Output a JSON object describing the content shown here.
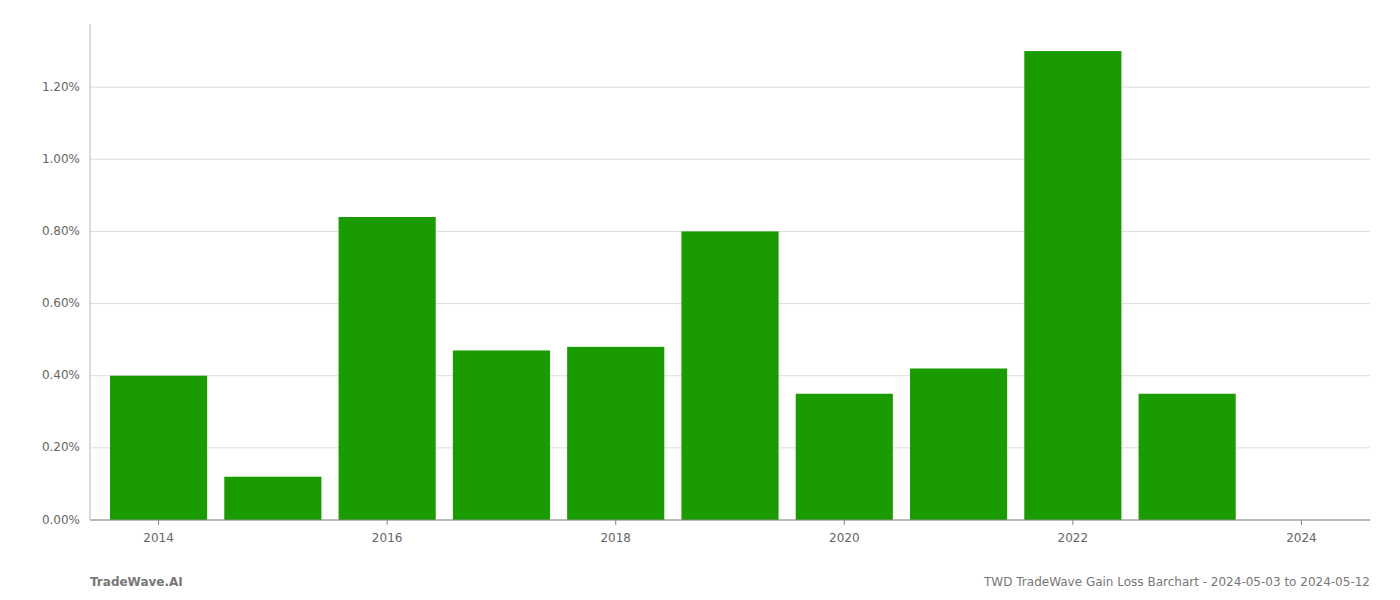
{
  "chart_data": {
    "type": "bar",
    "x": [
      2014,
      2015,
      2016,
      2017,
      2018,
      2019,
      2020,
      2021,
      2022,
      2023
    ],
    "values": [
      0.004,
      0.0012,
      0.0084,
      0.0047,
      0.0048,
      0.008,
      0.0035,
      0.0042,
      0.013,
      0.0035
    ],
    "color": "#1a9b00",
    "xlim": [
      2013.4,
      2024.6
    ],
    "xticks": [
      2014,
      2016,
      2018,
      2020,
      2022,
      2024
    ],
    "ylim": [
      0,
      0.01375
    ],
    "yticks": [
      {
        "value": 0.0,
        "label": "0.00%"
      },
      {
        "value": 0.002,
        "label": "0.20%"
      },
      {
        "value": 0.004,
        "label": "0.40%"
      },
      {
        "value": 0.006,
        "label": "0.60%"
      },
      {
        "value": 0.008,
        "label": "0.80%"
      },
      {
        "value": 0.01,
        "label": "1.00%"
      },
      {
        "value": 0.012,
        "label": "1.20%"
      }
    ],
    "grid": true,
    "annotations": [
      "TradeWave.AI",
      "TWD TradeWave Gain Loss Barchart - 2024-05-03 to 2024-05-12"
    ]
  }
}
